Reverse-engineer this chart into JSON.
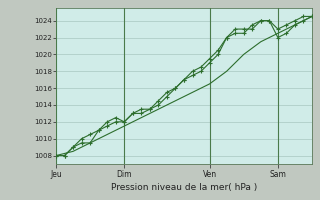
{
  "background_color": "#c0c8c0",
  "plot_bg_color": "#d0ece8",
  "grid_color": "#a8c8c0",
  "line_color": "#2d6e2d",
  "marker_color": "#2d6e2d",
  "vline_color": "#4a7a4a",
  "xlabel": "Pression niveau de la mer( hPa )",
  "ylim": [
    1007,
    1025.5
  ],
  "yticks": [
    1008,
    1010,
    1012,
    1014,
    1016,
    1018,
    1020,
    1022,
    1024
  ],
  "day_labels": [
    "Jeu",
    "Dim",
    "Ven",
    "Sam"
  ],
  "day_positions": [
    0,
    48,
    108,
    156
  ],
  "series1_smooth": [
    [
      0,
      1008
    ],
    [
      12,
      1008.5
    ],
    [
      24,
      1009.5
    ],
    [
      36,
      1010.5
    ],
    [
      48,
      1011.5
    ],
    [
      60,
      1012.5
    ],
    [
      72,
      1013.5
    ],
    [
      84,
      1014.5
    ],
    [
      96,
      1015.5
    ],
    [
      108,
      1016.5
    ],
    [
      120,
      1018
    ],
    [
      132,
      1020
    ],
    [
      144,
      1021.5
    ],
    [
      156,
      1022.5
    ],
    [
      168,
      1023.5
    ],
    [
      180,
      1024.5
    ]
  ],
  "series2": [
    [
      0,
      1008
    ],
    [
      6,
      1008
    ],
    [
      12,
      1009
    ],
    [
      18,
      1009.5
    ],
    [
      24,
      1009.5
    ],
    [
      30,
      1011
    ],
    [
      36,
      1011.5
    ],
    [
      42,
      1012
    ],
    [
      48,
      1012
    ],
    [
      54,
      1013
    ],
    [
      60,
      1013.5
    ],
    [
      66,
      1013.5
    ],
    [
      72,
      1014
    ],
    [
      78,
      1015
    ],
    [
      84,
      1016
    ],
    [
      90,
      1017
    ],
    [
      96,
      1017.5
    ],
    [
      102,
      1018
    ],
    [
      108,
      1019
    ],
    [
      114,
      1020
    ],
    [
      120,
      1022
    ],
    [
      126,
      1023
    ],
    [
      132,
      1023
    ],
    [
      138,
      1023
    ],
    [
      144,
      1024
    ],
    [
      150,
      1024
    ],
    [
      156,
      1023
    ],
    [
      162,
      1023.5
    ],
    [
      168,
      1024
    ],
    [
      174,
      1024.5
    ],
    [
      180,
      1024.5
    ]
  ],
  "series3": [
    [
      0,
      1008
    ],
    [
      6,
      1008
    ],
    [
      12,
      1009
    ],
    [
      18,
      1010
    ],
    [
      24,
      1010.5
    ],
    [
      30,
      1011
    ],
    [
      36,
      1012
    ],
    [
      42,
      1012.5
    ],
    [
      48,
      1012
    ],
    [
      54,
      1013
    ],
    [
      60,
      1013
    ],
    [
      66,
      1013.5
    ],
    [
      72,
      1014.5
    ],
    [
      78,
      1015.5
    ],
    [
      84,
      1016
    ],
    [
      90,
      1017
    ],
    [
      96,
      1018
    ],
    [
      102,
      1018.5
    ],
    [
      108,
      1019.5
    ],
    [
      114,
      1020.5
    ],
    [
      120,
      1022
    ],
    [
      126,
      1022.5
    ],
    [
      132,
      1022.5
    ],
    [
      138,
      1023.5
    ],
    [
      144,
      1024
    ],
    [
      150,
      1024
    ],
    [
      156,
      1022
    ],
    [
      162,
      1022.5
    ],
    [
      168,
      1023.5
    ],
    [
      174,
      1024
    ],
    [
      180,
      1024.5
    ]
  ]
}
